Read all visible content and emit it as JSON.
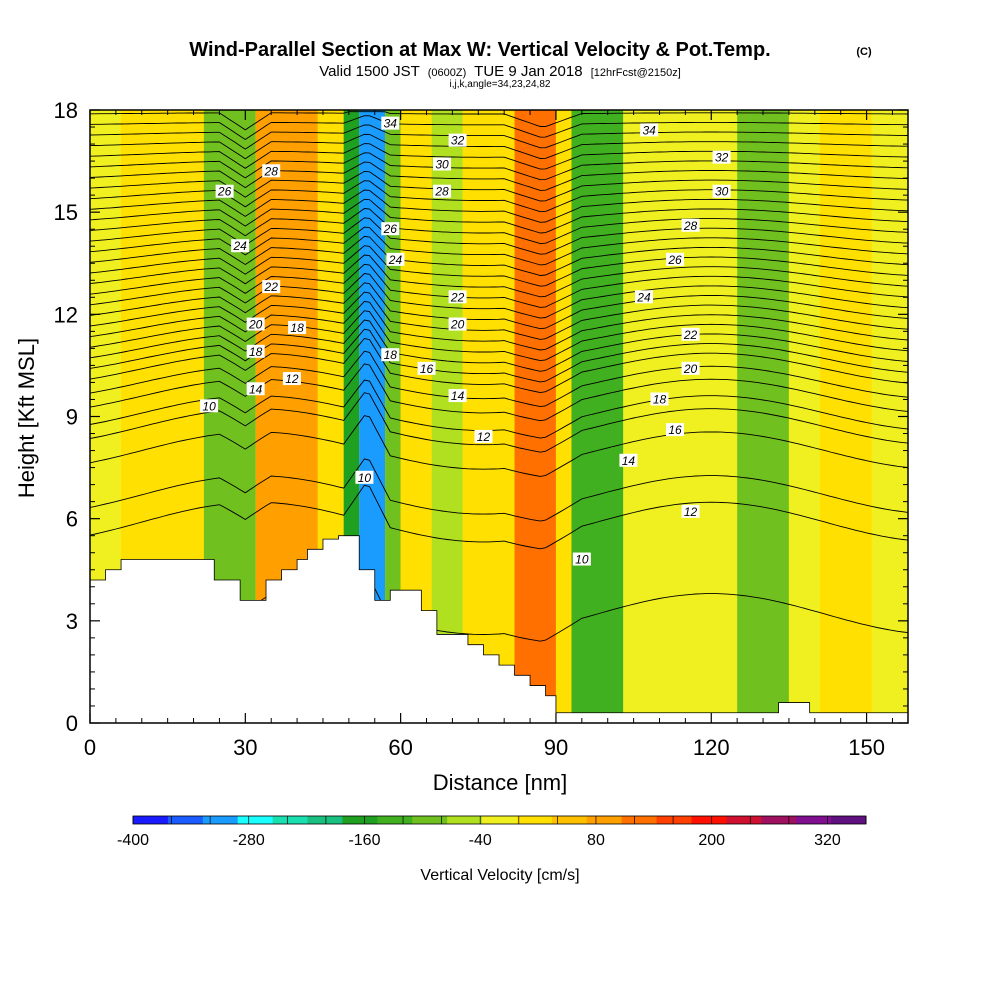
{
  "chart_data": {
    "type": "heatmap",
    "title": "Wind-Parallel Section at Max W: Vertical Velocity & Pot.Temp.",
    "title_mark": "(C)",
    "subtitle_pre": "Valid 1500 JST",
    "subtitle_utc": "(0600Z)",
    "subtitle_date": "TUE 9 Jan 2018",
    "subtitle_fcst": "[12hrFcst@2150z]",
    "subtitle2": "i,j,k,angle=34,23,24,82",
    "xlabel": "Distance [nm]",
    "ylabel": "Height [Kft MSL]",
    "xlim": [
      0,
      158
    ],
    "ylim": [
      0,
      18
    ],
    "xticks": [
      0,
      30,
      60,
      90,
      120,
      150
    ],
    "yticks": [
      0,
      3,
      6,
      9,
      12,
      15,
      18
    ],
    "colorbar": {
      "label": "Vertical Velocity [cm/s]",
      "tick_labels": [
        "-400",
        "-280",
        "-160",
        "-40",
        "80",
        "200",
        "320"
      ],
      "tick_values": [
        -400,
        -280,
        -160,
        -40,
        80,
        200,
        320
      ],
      "min": -400,
      "max": 360,
      "step": 40,
      "colors": [
        "#1a1aff",
        "#1a5cff",
        "#1a9cff",
        "#1affff",
        "#1ae0b0",
        "#1ac080",
        "#20a020",
        "#40b020",
        "#70c020",
        "#b0e020",
        "#f0f020",
        "#ffe000",
        "#ffc000",
        "#ffa000",
        "#ff7000",
        "#ff4000",
        "#ff1000",
        "#d01030",
        "#a01060",
        "#801090",
        "#601080"
      ]
    },
    "velocity_bands": [
      {
        "x": 0,
        "w": 6,
        "v": 20
      },
      {
        "x": 6,
        "w": 16,
        "v": 60
      },
      {
        "x": 22,
        "w": 10,
        "v": -80
      },
      {
        "x": 32,
        "w": 12,
        "v": 120
      },
      {
        "x": 44,
        "w": 5,
        "v": 40
      },
      {
        "x": 49,
        "w": 3,
        "v": -160
      },
      {
        "x": 52,
        "w": 5,
        "v": -300
      },
      {
        "x": 57,
        "w": 3,
        "v": -80
      },
      {
        "x": 60,
        "w": 6,
        "v": 60
      },
      {
        "x": 66,
        "w": 6,
        "v": -40
      },
      {
        "x": 72,
        "w": 10,
        "v": 60
      },
      {
        "x": 82,
        "w": 8,
        "v": 160
      },
      {
        "x": 90,
        "w": 3,
        "v": 40
      },
      {
        "x": 93,
        "w": 10,
        "v": -120
      },
      {
        "x": 103,
        "w": 10,
        "v": 20
      },
      {
        "x": 113,
        "w": 12,
        "v": 20
      },
      {
        "x": 125,
        "w": 10,
        "v": -80
      },
      {
        "x": 135,
        "w": 6,
        "v": 20
      },
      {
        "x": 141,
        "w": 10,
        "v": 60
      },
      {
        "x": 151,
        "w": 7,
        "v": 20
      }
    ],
    "terrain": [
      {
        "x": 0,
        "h": 4.2
      },
      {
        "x": 3,
        "h": 4.5
      },
      {
        "x": 6,
        "h": 4.8
      },
      {
        "x": 9,
        "h": 4.8
      },
      {
        "x": 12,
        "h": 4.8
      },
      {
        "x": 15,
        "h": 4.8
      },
      {
        "x": 18,
        "h": 4.8
      },
      {
        "x": 21,
        "h": 4.8
      },
      {
        "x": 24,
        "h": 4.2
      },
      {
        "x": 27,
        "h": 4.2
      },
      {
        "x": 29,
        "h": 3.6
      },
      {
        "x": 32,
        "h": 3.6
      },
      {
        "x": 34,
        "h": 4.2
      },
      {
        "x": 37,
        "h": 4.5
      },
      {
        "x": 40,
        "h": 4.8
      },
      {
        "x": 42,
        "h": 5.1
      },
      {
        "x": 45,
        "h": 5.4
      },
      {
        "x": 48,
        "h": 5.5
      },
      {
        "x": 51,
        "h": 5.5
      },
      {
        "x": 52,
        "h": 4.5
      },
      {
        "x": 55,
        "h": 3.6
      },
      {
        "x": 58,
        "h": 3.9
      },
      {
        "x": 61,
        "h": 3.9
      },
      {
        "x": 64,
        "h": 3.3
      },
      {
        "x": 67,
        "h": 2.6
      },
      {
        "x": 70,
        "h": 2.6
      },
      {
        "x": 73,
        "h": 2.3
      },
      {
        "x": 76,
        "h": 2.0
      },
      {
        "x": 79,
        "h": 1.7
      },
      {
        "x": 82,
        "h": 1.4
      },
      {
        "x": 85,
        "h": 1.1
      },
      {
        "x": 88,
        "h": 0.8
      },
      {
        "x": 90,
        "h": 0.3
      },
      {
        "x": 133,
        "h": 0.6
      },
      {
        "x": 139,
        "h": 0.3
      },
      {
        "x": 158,
        "h": 0.3
      }
    ],
    "theta_labels": [
      {
        "text": "34",
        "x": 58,
        "y": 17.6
      },
      {
        "text": "32",
        "x": 71,
        "y": 17.1
      },
      {
        "text": "30",
        "x": 68,
        "y": 16.4
      },
      {
        "text": "28",
        "x": 68,
        "y": 15.6
      },
      {
        "text": "26",
        "x": 58,
        "y": 14.5
      },
      {
        "text": "24",
        "x": 59,
        "y": 13.6
      },
      {
        "text": "22",
        "x": 71,
        "y": 12.5
      },
      {
        "text": "20",
        "x": 71,
        "y": 11.7
      },
      {
        "text": "18",
        "x": 58,
        "y": 10.8
      },
      {
        "text": "16",
        "x": 65,
        "y": 10.4
      },
      {
        "text": "14",
        "x": 71,
        "y": 9.6
      },
      {
        "text": "12",
        "x": 76,
        "y": 8.4
      },
      {
        "text": "10",
        "x": 53,
        "y": 7.2
      },
      {
        "text": "28",
        "x": 35,
        "y": 16.2
      },
      {
        "text": "26",
        "x": 26,
        "y": 15.6
      },
      {
        "text": "24",
        "x": 29,
        "y": 14.0
      },
      {
        "text": "22",
        "x": 35,
        "y": 12.8
      },
      {
        "text": "20",
        "x": 32,
        "y": 11.7
      },
      {
        "text": "18",
        "x": 40,
        "y": 11.6
      },
      {
        "text": "18",
        "x": 32,
        "y": 10.9
      },
      {
        "text": "14",
        "x": 32,
        "y": 9.8
      },
      {
        "text": "12",
        "x": 39,
        "y": 10.1
      },
      {
        "text": "10",
        "x": 23,
        "y": 9.3
      },
      {
        "text": "34",
        "x": 108,
        "y": 17.4
      },
      {
        "text": "32",
        "x": 122,
        "y": 16.6
      },
      {
        "text": "30",
        "x": 122,
        "y": 15.6
      },
      {
        "text": "28",
        "x": 116,
        "y": 14.6
      },
      {
        "text": "26",
        "x": 113,
        "y": 13.6
      },
      {
        "text": "24",
        "x": 107,
        "y": 12.5
      },
      {
        "text": "22",
        "x": 116,
        "y": 11.4
      },
      {
        "text": "20",
        "x": 116,
        "y": 10.4
      },
      {
        "text": "18",
        "x": 110,
        "y": 9.5
      },
      {
        "text": "16",
        "x": 113,
        "y": 8.6
      },
      {
        "text": "14",
        "x": 104,
        "y": 7.7
      },
      {
        "text": "12",
        "x": 116,
        "y": 6.2
      },
      {
        "text": "10",
        "x": 95,
        "y": 4.8
      }
    ],
    "theta_contours": {
      "base_levels_kft": [
        3.2,
        5.9,
        6.7,
        8.0,
        8.7,
        9.1,
        9.6,
        10.0,
        10.4,
        10.7,
        11.0,
        11.3,
        11.6,
        11.9,
        12.2,
        12.5,
        12.8,
        13.1,
        13.4,
        13.7,
        14.0,
        14.3,
        14.6,
        14.9,
        15.2,
        15.5,
        15.8,
        16.1,
        16.4,
        16.7,
        17.0,
        17.3,
        17.6,
        17.9
      ]
    }
  }
}
